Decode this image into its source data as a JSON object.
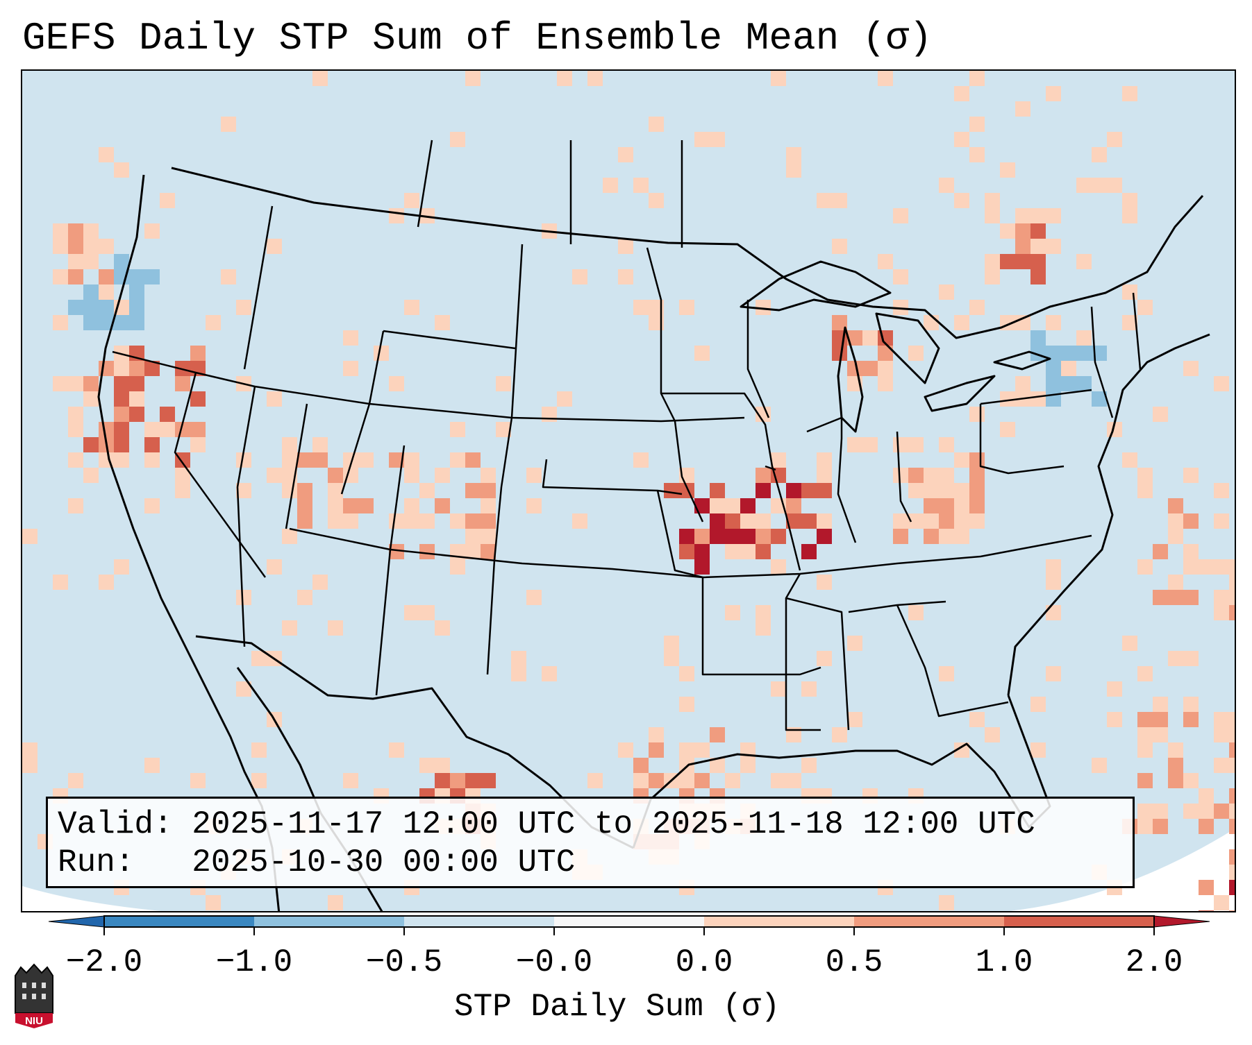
{
  "title": "GEFS Daily STP Sum of Ensemble Mean (σ)",
  "info_box": {
    "valid_line": "Valid: 2025-11-17 12:00 UTC to 2025-11-18 12:00 UTC",
    "run_line": "Run:   2025-10-30 00:00 UTC"
  },
  "colorbar": {
    "label": "STP Daily Sum (σ)",
    "ticks": [
      "−2.0",
      "−1.0",
      "−0.5",
      "−0.0",
      "0.0",
      "0.5",
      "1.0",
      "2.0"
    ],
    "colors": {
      "lt_-1.0": "#3a87c0",
      "-1.0_-0.5": "#8fc1de",
      "-0.5_-0.0": "#d0e4ef",
      "-0.0_0.0": "#f7f7f7",
      "0.0_0.5": "#fcd3bc",
      "0.5_1.0": "#f09c7f",
      "1.0_2.0": "#d6604d",
      "gt_2.0": "#b2182b"
    },
    "extend": "both"
  },
  "map": {
    "projection": "lambert-conformal CONUS",
    "background_color": "#d0e4ef",
    "boundary_color": "#000000",
    "features": [
      "state-borders",
      "country-borders",
      "coastlines",
      "great-lakes"
    ]
  },
  "logo": {
    "text": "NIU",
    "icon": "niu-castle-icon"
  }
}
